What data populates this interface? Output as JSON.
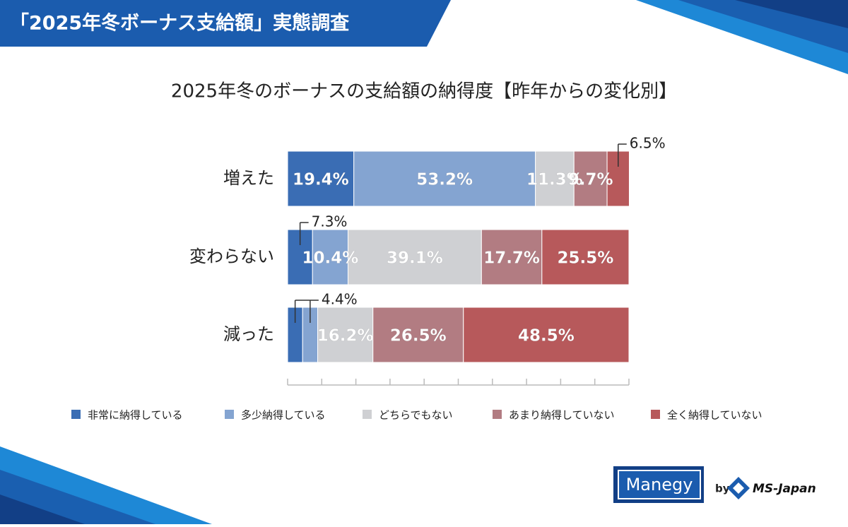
{
  "header": {
    "title": "「2025年冬ボーナス支給額」実態調査"
  },
  "chart_data": {
    "type": "stacked-bar-horizontal",
    "title": "2025年冬のボーナスの支給額の納得度【昨年からの変化別】",
    "categories": [
      "増えた",
      "変わらない",
      "減った"
    ],
    "series": [
      {
        "name": "非常に納得している",
        "color": "#3a6db4",
        "values": [
          19.4,
          7.3,
          4.4
        ],
        "value_labels": [
          "19.4%",
          "7.3%",
          null
        ]
      },
      {
        "name": "多少納得している",
        "color": "#84a4d1",
        "values": [
          53.2,
          10.4,
          4.4
        ],
        "value_labels": [
          "53.2%",
          "10.4%",
          "4.4%"
        ]
      },
      {
        "name": "どちらでもない",
        "color": "#cfd0d3",
        "values": [
          11.3,
          39.1,
          16.2
        ],
        "value_labels": [
          "11.3%",
          "39.1%",
          "16.2%"
        ]
      },
      {
        "name": "あまり納得していない",
        "color": "#b27c82",
        "values": [
          9.7,
          17.7,
          26.5
        ],
        "value_labels": [
          "9.7%",
          "17.7%",
          "26.5%"
        ]
      },
      {
        "name": "全く納得していない",
        "color": "#b7595b",
        "values": [
          6.5,
          25.5,
          48.5
        ],
        "value_labels": [
          "6.5%",
          "25.5%",
          "48.5%"
        ]
      }
    ],
    "xlim": [
      0,
      100
    ],
    "xticks": [
      0,
      10,
      20,
      30,
      40,
      50,
      60,
      70,
      80,
      90,
      100
    ],
    "legend": "bottom"
  },
  "footer": {
    "brand": "Manegy",
    "by": "by",
    "company": "MS-Japan"
  }
}
